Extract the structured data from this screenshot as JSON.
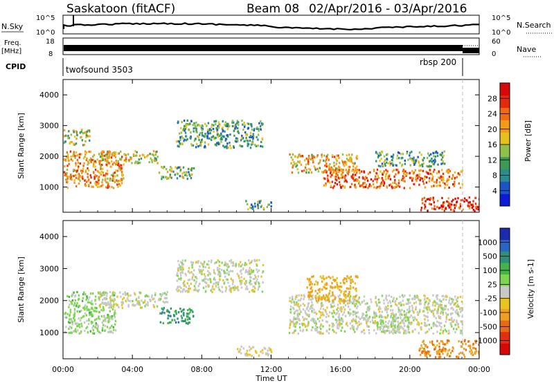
{
  "header": {
    "station": "Saskatoon (fitACF)",
    "beam": "Beam 08",
    "date_range": "02/Apr/2016 - 03/Apr/2016"
  },
  "strips": {
    "nsky_label": "N.Sky",
    "nsky_ticks": [
      "10^5",
      "10^0"
    ],
    "nsearch_label": "N.Search",
    "nsearch_ticks": [
      "10^5",
      "10^0"
    ],
    "freq_label_line1": "Freq.",
    "freq_label_line2": "[MHz]",
    "freq_ticks": [
      "18",
      "8"
    ],
    "nave_label": "Nave",
    "nave_ticks": [
      "60",
      "0"
    ],
    "cpid_label": "CPID",
    "cpid_left": "twofsound 3503",
    "cpid_right": "rbsp 200"
  },
  "panels": {
    "x_ticks": [
      "00:00",
      "04:00",
      "08:00",
      "12:00",
      "16:00",
      "20:00",
      "00:00"
    ],
    "x_label": "Time UT",
    "y_label": "Slant Range [km]",
    "y_ticks": [
      "1000",
      "2000",
      "3000",
      "4000"
    ],
    "power": {
      "colorbar_label": "Power [dB]",
      "colorbar_ticks": [
        "4",
        "8",
        "12",
        "16",
        "20",
        "24",
        "28"
      ],
      "colors": [
        "#0b1cd6",
        "#1b55c8",
        "#2a8c8c",
        "#3c9a55",
        "#8fc04a",
        "#e6c01e",
        "#f49a17",
        "#f06a12",
        "#e52a0c",
        "#d90808"
      ]
    },
    "velocity": {
      "colorbar_label": "Velocity [m s-1]",
      "colorbar_ticks": [
        "1000",
        "500",
        "100",
        "25",
        "-25",
        "-100",
        "-500",
        "-1000"
      ],
      "colors": [
        "#1a2bb0",
        "#2a66c0",
        "#2b8f7a",
        "#44b44a",
        "#7ed650",
        "#c8c8c8",
        "#e6c520",
        "#f0a020",
        "#e86a14",
        "#e0300e",
        "#d60808"
      ]
    }
  },
  "chart_data": [
    {
      "type": "heatmap",
      "title": "Power [dB]",
      "xlabel": "Time UT",
      "ylabel": "Slant Range [km]",
      "xlim": [
        0,
        24
      ],
      "ylim": [
        180,
        4500
      ],
      "colorbar_range": [
        0,
        30
      ],
      "colorbar_label": "Power [dB]",
      "bands": [
        {
          "t": [
            0.0,
            3.5
          ],
          "range": [
            1000,
            2200
          ],
          "value": 20
        },
        {
          "t": [
            0.0,
            1.5
          ],
          "range": [
            2400,
            2900
          ],
          "value": 14
        },
        {
          "t": [
            2.0,
            5.5
          ],
          "range": [
            1800,
            2200
          ],
          "value": 16
        },
        {
          "t": [
            5.5,
            7.5
          ],
          "range": [
            1300,
            1700
          ],
          "value": 12
        },
        {
          "t": [
            6.5,
            11.5
          ],
          "range": [
            2300,
            3200
          ],
          "value": 10
        },
        {
          "t": [
            13.0,
            17.0
          ],
          "range": [
            1500,
            2100
          ],
          "value": 18
        },
        {
          "t": [
            15.0,
            23.0
          ],
          "range": [
            1000,
            1600
          ],
          "value": 22
        },
        {
          "t": [
            18.0,
            22.0
          ],
          "range": [
            1700,
            2200
          ],
          "value": 10
        },
        {
          "t": [
            20.5,
            24.0
          ],
          "range": [
            250,
            700
          ],
          "value": 26
        },
        {
          "t": [
            10.5,
            12.0
          ],
          "range": [
            300,
            600
          ],
          "value": 10
        }
      ]
    },
    {
      "type": "heatmap",
      "title": "Velocity [m s-1]",
      "xlabel": "Time UT",
      "ylabel": "Slant Range [km]",
      "xlim": [
        0,
        24
      ],
      "ylim": [
        180,
        4500
      ],
      "colorbar_range": [
        -1000,
        1000
      ],
      "colorbar_label": "Velocity [m s-1]",
      "bands": [
        {
          "t": [
            0.0,
            3.0
          ],
          "range": [
            1000,
            2300
          ],
          "value": 150
        },
        {
          "t": [
            2.0,
            6.0
          ],
          "range": [
            1800,
            2300
          ],
          "value": 0
        },
        {
          "t": [
            6.5,
            11.5
          ],
          "range": [
            2300,
            3300
          ],
          "value": 0
        },
        {
          "t": [
            5.5,
            7.5
          ],
          "range": [
            1300,
            1800
          ],
          "value": 500
        },
        {
          "t": [
            13.0,
            23.0
          ],
          "range": [
            1000,
            2200
          ],
          "value": 0
        },
        {
          "t": [
            14.0,
            17.0
          ],
          "range": [
            2000,
            2800
          ],
          "value": -300
        },
        {
          "t": [
            18.0,
            20.0
          ],
          "range": [
            1000,
            1600
          ],
          "value": 100
        },
        {
          "t": [
            20.5,
            24.0
          ],
          "range": [
            250,
            800
          ],
          "value": -400
        },
        {
          "t": [
            10.0,
            12.0
          ],
          "range": [
            300,
            600
          ],
          "value": -100
        }
      ]
    }
  ]
}
